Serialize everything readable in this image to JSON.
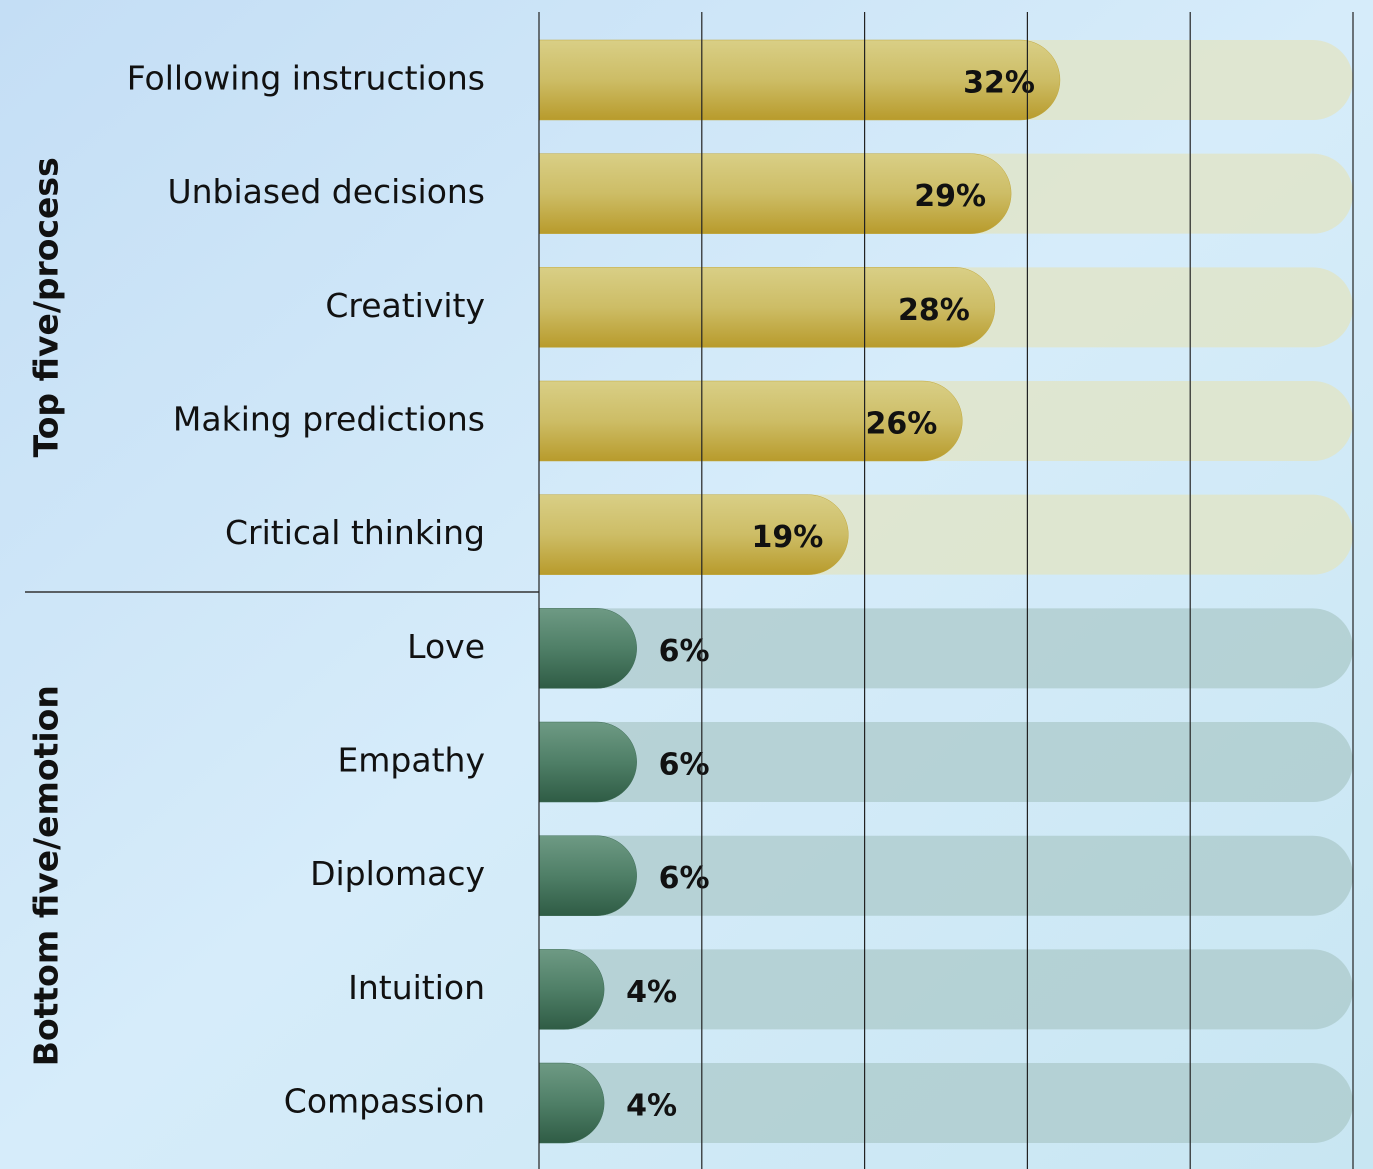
{
  "chart_data": {
    "type": "bar",
    "xlim": [
      0,
      50
    ],
    "xticks": [
      0,
      10,
      20,
      30,
      40,
      50
    ],
    "grid": true,
    "groups": [
      {
        "name": "Top five/process",
        "color": "#c2a83c",
        "categories": [
          "Following instructions",
          "Unbiased decisions",
          "Creativity",
          "Making predictions",
          "Critical thinking"
        ],
        "values": [
          32,
          29,
          28,
          26,
          19
        ],
        "value_labels": [
          "32%",
          "29%",
          "28%",
          "26%",
          "19%"
        ]
      },
      {
        "name": "Bottom five/emotion",
        "color": "#3f6d57",
        "categories": [
          "Love",
          "Empathy",
          "Diplomacy",
          "Intuition",
          "Compassion"
        ],
        "values": [
          6,
          6,
          6,
          4,
          4
        ],
        "value_labels": [
          "6%",
          "6%",
          "6%",
          "4%",
          "4%"
        ]
      }
    ]
  }
}
